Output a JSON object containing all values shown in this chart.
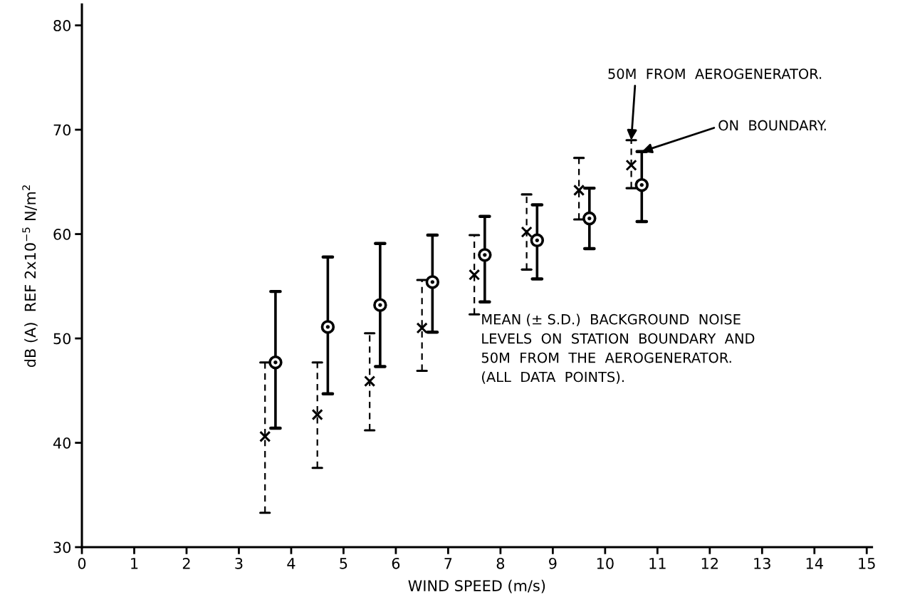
{
  "chart_data": {
    "type": "scatter",
    "xlabel": "WIND SPEED (m/s)",
    "ylabel": "dB (A)  REF 2x10$^{−5}$ N/m$^{2}$",
    "xlim": [
      0,
      15.1
    ],
    "ylim": [
      30,
      82
    ],
    "xticks": [
      0,
      1,
      2,
      3,
      4,
      5,
      6,
      7,
      8,
      9,
      10,
      11,
      12,
      13,
      14,
      15
    ],
    "yticks": [
      30,
      40,
      50,
      60,
      70,
      80
    ],
    "grid": false,
    "legend": false,
    "series": [
      {
        "color": "#000000",
        "marker": "cross",
        "line_style": "dashed",
        "x": [
          3.5,
          4.5,
          5.5,
          6.5,
          7.5,
          8.5,
          9.5,
          10.5
        ],
        "values": [
          40.6,
          42.7,
          45.9,
          51.0,
          56.1,
          60.2,
          64.2,
          66.6
        ],
        "errors": [
          [
            33.3,
            47.7
          ],
          [
            37.6,
            47.7
          ],
          [
            41.2,
            50.5
          ],
          [
            46.9,
            55.6
          ],
          [
            52.3,
            59.9
          ],
          [
            56.6,
            63.8
          ],
          [
            61.4,
            67.3
          ],
          [
            64.4,
            69.0
          ]
        ]
      },
      {
        "color": "#000000",
        "marker": "circle",
        "line_style": "solid",
        "x": [
          3.7,
          4.7,
          5.7,
          6.7,
          7.7,
          8.7,
          9.7,
          10.7
        ],
        "values": [
          47.7,
          51.1,
          53.2,
          55.4,
          58.0,
          59.4,
          61.5,
          64.7
        ],
        "errors": [
          [
            41.4,
            54.5
          ],
          [
            44.7,
            57.8
          ],
          [
            47.3,
            59.1
          ],
          [
            50.6,
            59.9
          ],
          [
            53.5,
            61.7
          ],
          [
            55.7,
            62.8
          ],
          [
            58.6,
            64.4
          ],
          [
            61.2,
            67.9
          ]
        ]
      }
    ],
    "annotations": [
      {
        "text": "50M  FROM  AEROGENERATOR.",
        "x": 10.5,
        "y": 69.0
      },
      {
        "text": "ON  BOUNDARY.",
        "x": 10.7,
        "y": 67.9
      },
      "MEAN (± S.D.)  BACKGROUND  NOISE\nLEVELS  ON  STATION  BOUNDARY  AND\n50M  FROM  THE  AEROGENERATOR.\n(ALL  DATA  POINTS)."
    ]
  }
}
